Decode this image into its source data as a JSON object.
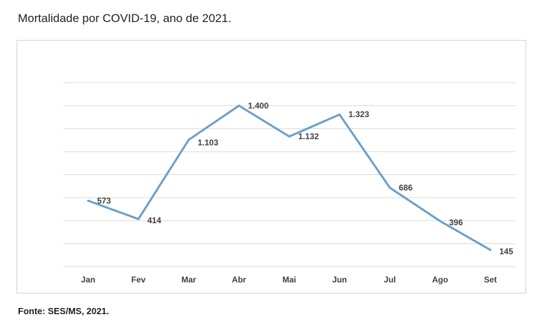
{
  "title": "Mortalidade por COVID-19, ano de 2021.",
  "source": "Fonte: SES/MS, 2021.",
  "colors": {
    "line": "#6a9fcb",
    "grid": "#d9d9d9",
    "label": "#404040"
  },
  "chart_data": {
    "type": "line",
    "title": "Mortalidade por COVID-19, ano de 2021.",
    "xlabel": "",
    "ylabel": "",
    "categories": [
      "Jan",
      "Fev",
      "Mar",
      "Abr",
      "Mai",
      "Jun",
      "Jul",
      "Ago",
      "Set"
    ],
    "series": [
      {
        "values": [
          573,
          414,
          1103,
          1400,
          1132,
          1323,
          686,
          396,
          145
        ],
        "labels": [
          "573",
          "414",
          "1.103",
          "1.400",
          "1.132",
          "1.323",
          "686",
          "396",
          "145"
        ]
      }
    ],
    "ylim": [
      0,
      1600
    ],
    "grid": true,
    "legend": "none"
  }
}
